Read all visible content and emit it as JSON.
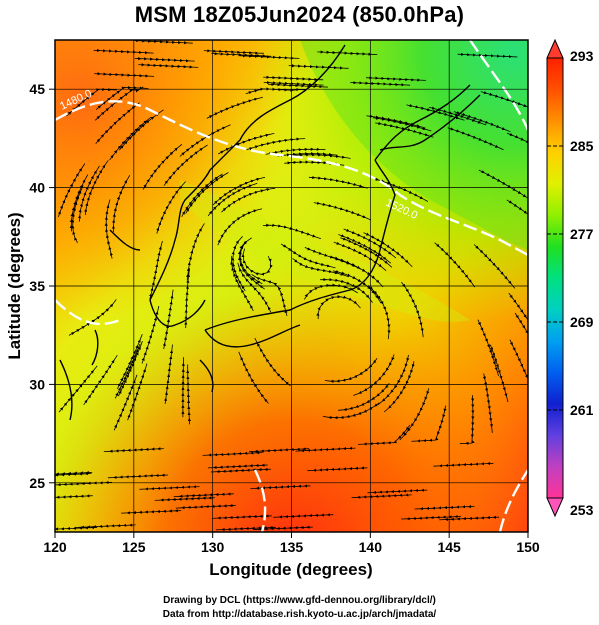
{
  "title": "MSM 18Z05Jun2024 (850.0hPa)",
  "map": {
    "x_axis": {
      "label": "Longitude (degrees)",
      "range": [
        120,
        150
      ],
      "ticks": [
        120,
        125,
        130,
        135,
        140,
        145,
        150
      ]
    },
    "y_axis": {
      "label": "Latitude  (degrees)",
      "range": [
        22.5,
        47.5
      ],
      "ticks": [
        25,
        30,
        35,
        40,
        45
      ]
    },
    "grid": true,
    "field": "temperature (K) at 850 hPa",
    "overlays": [
      "streamlines",
      "geopotential height contours",
      "coastlines"
    ],
    "contour_labels": [
      "1480.0",
      "1520.0"
    ]
  },
  "colorbar": {
    "min": 253,
    "max": 293,
    "ticks": [
      293,
      285,
      277,
      269,
      261,
      253
    ],
    "colors": [
      "#ff3399",
      "#c040c0",
      "#6040e0",
      "#1020d0",
      "#0060f0",
      "#00a0f0",
      "#00d0c0",
      "#00e080",
      "#20e020",
      "#90f000",
      "#e0f000",
      "#ffd000",
      "#ff9000",
      "#ff5000",
      "#ff2000"
    ],
    "extend_top_color": "#ff3b30",
    "extend_bottom_color": "#ff55bb"
  },
  "credits": {
    "line1": "Drawing by DCL (https://www.gfd-dennou.org/library/dcl/)",
    "line2": "Data from http://database.rish.kyoto-u.ac.jp/arch/jmadata/"
  }
}
